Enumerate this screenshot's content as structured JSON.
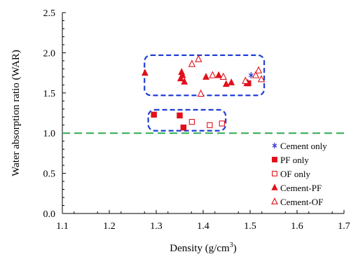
{
  "chart_data": {
    "type": "scatter",
    "xlabel": "Density (g/cm",
    "xlabel_sup": "3",
    "xlabel_close": ")",
    "ylabel": "Water absorption ratio (WAR)",
    "xlim": [
      1.1,
      1.7
    ],
    "ylim": [
      0.0,
      2.5
    ],
    "x_ticks": [
      "1.1",
      "1.2",
      "1.3",
      "1.4",
      "1.5",
      "1.6",
      "1.7"
    ],
    "y_ticks": [
      "0.0",
      "0.5",
      "1.0",
      "1.5",
      "2.0",
      "2.5"
    ],
    "reference_line": {
      "y": 1.0,
      "style": "dashed",
      "color": "#2eaa50"
    },
    "grid": false,
    "legend_position": "bottom-right",
    "groupings": [
      {
        "x_range": [
          1.275,
          1.53
        ],
        "y_range": [
          1.47,
          1.97
        ],
        "color": "#1f3fd6",
        "style": "dashed-rounded"
      },
      {
        "x_range": [
          1.283,
          1.448
        ],
        "y_range": [
          1.03,
          1.29
        ],
        "color": "#1f3fd6",
        "style": "dashed-rounded"
      }
    ],
    "series": [
      {
        "name": "Cement only",
        "marker": "asterisk",
        "color": "#3a3ad0",
        "points": [
          [
            1.495,
            1.63
          ],
          [
            1.502,
            1.72
          ]
        ]
      },
      {
        "name": "PF only",
        "marker": "square-filled",
        "color": "#e0101a",
        "points": [
          [
            1.295,
            1.23
          ],
          [
            1.35,
            1.22
          ],
          [
            1.358,
            1.07
          ],
          [
            1.496,
            1.62
          ]
        ]
      },
      {
        "name": "OF only",
        "marker": "square-open",
        "color": "#e0101a",
        "points": [
          [
            1.376,
            1.14
          ],
          [
            1.414,
            1.1
          ],
          [
            1.44,
            1.12
          ]
        ]
      },
      {
        "name": "Cement-PF",
        "marker": "triangle-filled",
        "color": "#e0101a",
        "points": [
          [
            1.276,
            1.75
          ],
          [
            1.354,
            1.76
          ],
          [
            1.356,
            1.72
          ],
          [
            1.36,
            1.64
          ],
          [
            1.352,
            1.68
          ],
          [
            1.406,
            1.7
          ],
          [
            1.433,
            1.72
          ],
          [
            1.449,
            1.61
          ],
          [
            1.46,
            1.63
          ],
          [
            1.493,
            1.62
          ]
        ]
      },
      {
        "name": "Cement-OF",
        "marker": "triangle-open",
        "color": "#e0101a",
        "points": [
          [
            1.376,
            1.86
          ],
          [
            1.39,
            1.92
          ],
          [
            1.395,
            1.49
          ],
          [
            1.42,
            1.72
          ],
          [
            1.443,
            1.7
          ],
          [
            1.49,
            1.65
          ],
          [
            1.512,
            1.72
          ],
          [
            1.518,
            1.78
          ],
          [
            1.524,
            1.67
          ]
        ]
      }
    ]
  }
}
